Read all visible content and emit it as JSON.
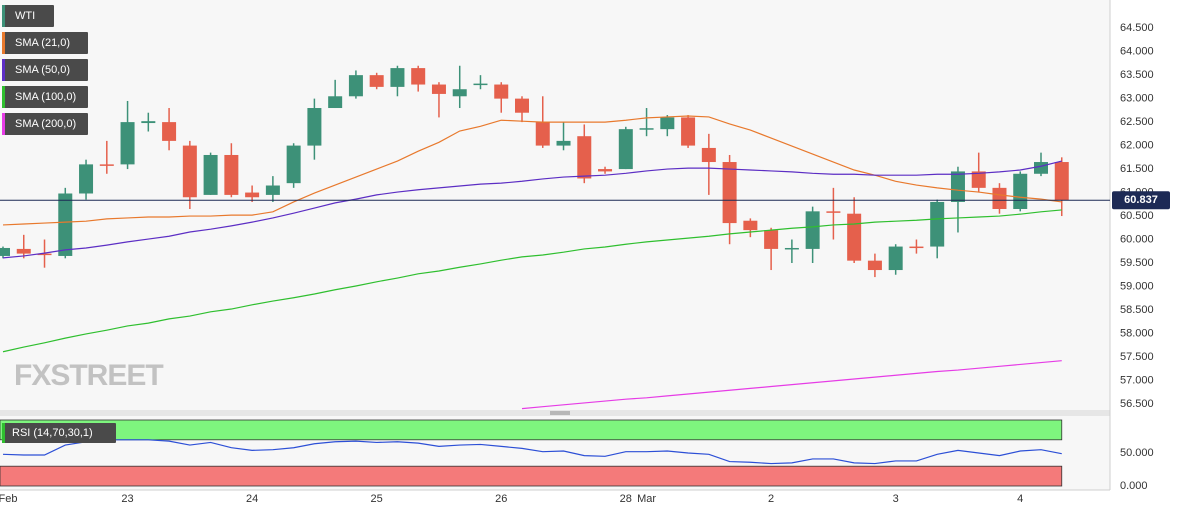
{
  "chart_data": [
    {
      "type": "candlestick",
      "categories": [
        "Feb",
        null,
        null,
        null,
        null,
        null,
        "23",
        null,
        null,
        null,
        null,
        null,
        "24",
        null,
        null,
        null,
        null,
        null,
        "25",
        null,
        null,
        null,
        null,
        null,
        "26",
        null,
        null,
        null,
        null,
        null,
        "28",
        "Mar",
        null,
        null,
        null,
        null,
        null,
        "2",
        null,
        null,
        null,
        null,
        null,
        "3",
        null,
        null,
        null,
        null,
        null,
        "4",
        null,
        null
      ],
      "ylim": [
        56.37,
        65.1
      ],
      "yticks": [
        {
          "value": 56.5,
          "label": "56.500"
        },
        {
          "value": 57,
          "label": "57.000"
        },
        {
          "value": 57.5,
          "label": "57.500"
        },
        {
          "value": 58,
          "label": "58.000"
        },
        {
          "value": 58.5,
          "label": "58.500"
        },
        {
          "value": 59,
          "label": "59.000"
        },
        {
          "value": 59.5,
          "label": "59.500"
        },
        {
          "value": 60,
          "label": "60.000"
        },
        {
          "value": 60.5,
          "label": "60.500"
        },
        {
          "value": 61,
          "label": "61.000"
        },
        {
          "value": 61.5,
          "label": "61.500"
        },
        {
          "value": 62,
          "label": "62.000"
        },
        {
          "value": 62.5,
          "label": "62.500"
        },
        {
          "value": 63,
          "label": "63.000"
        },
        {
          "value": 63.5,
          "label": "63.500"
        },
        {
          "value": 64,
          "label": "64.000"
        },
        {
          "value": 64.5,
          "label": "64.500"
        }
      ],
      "grid": true,
      "watermark": "FXSTREET",
      "last_price": 60.837,
      "last_price_color": "#1d2a55",
      "series": [
        {
          "name": "WTI",
          "type": "candlestick",
          "up_color": "#3d9178",
          "down_color": "#e5604c",
          "open": [
            59.65,
            59.8,
            59.7,
            59.65,
            60.98,
            61.6,
            61.6,
            62.48,
            62.5,
            62.0,
            60.95,
            61.8,
            61.0,
            60.95,
            61.2,
            62.0,
            62.8,
            63.05,
            63.5,
            63.25,
            63.65,
            63.3,
            63.05,
            63.3,
            63.3,
            63.0,
            62.5,
            62.0,
            62.2,
            61.5,
            61.5,
            62.35,
            62.35,
            62.6,
            61.95,
            61.65,
            60.4,
            60.2,
            59.8,
            59.8,
            60.6,
            60.55,
            59.55,
            59.35,
            59.85,
            59.85,
            60.8,
            61.45,
            61.1,
            60.65,
            61.4,
            61.65
          ],
          "high": [
            59.85,
            60.1,
            60.0,
            61.1,
            61.7,
            62.1,
            62.95,
            62.7,
            62.8,
            62.1,
            61.85,
            62.05,
            61.15,
            61.35,
            62.05,
            63.0,
            63.4,
            63.6,
            63.55,
            63.7,
            63.7,
            63.35,
            63.7,
            63.5,
            63.35,
            63.05,
            63.05,
            62.5,
            62.45,
            61.55,
            62.4,
            62.8,
            62.65,
            62.65,
            62.25,
            61.8,
            60.45,
            60.25,
            60.0,
            60.7,
            61.1,
            60.9,
            59.7,
            59.9,
            60.0,
            60.85,
            61.55,
            61.85,
            61.2,
            61.45,
            61.85,
            61.75
          ],
          "low": [
            59.6,
            59.6,
            59.4,
            59.6,
            60.85,
            61.4,
            61.5,
            62.3,
            61.9,
            60.65,
            60.95,
            60.9,
            60.8,
            60.8,
            61.1,
            61.7,
            62.8,
            63.0,
            63.2,
            63.05,
            63.15,
            62.6,
            62.8,
            63.2,
            62.7,
            62.5,
            61.95,
            61.9,
            61.2,
            61.4,
            61.5,
            62.2,
            62.2,
            61.95,
            60.95,
            59.9,
            60.05,
            59.35,
            59.5,
            59.5,
            60.0,
            59.5,
            59.2,
            59.25,
            59.7,
            59.6,
            60.15,
            61.0,
            60.55,
            60.6,
            61.35,
            60.5
          ],
          "close": [
            59.82,
            59.7,
            59.68,
            60.98,
            61.6,
            61.58,
            62.5,
            62.52,
            62.1,
            60.9,
            61.8,
            60.95,
            60.9,
            61.15,
            62.0,
            62.8,
            63.05,
            63.5,
            63.25,
            63.65,
            63.3,
            63.1,
            63.2,
            63.32,
            63.0,
            62.7,
            62.0,
            62.1,
            61.3,
            61.45,
            62.35,
            62.37,
            62.6,
            62.0,
            61.65,
            60.35,
            60.2,
            59.8,
            59.82,
            60.6,
            60.58,
            59.55,
            59.35,
            59.85,
            59.83,
            60.8,
            61.45,
            61.1,
            60.65,
            61.4,
            61.65,
            60.837
          ]
        },
        {
          "name": "SMA (21,0)",
          "type": "line",
          "color": "#e8792d",
          "values": [
            60.31,
            60.33,
            60.35,
            60.37,
            60.39,
            60.44,
            60.46,
            60.48,
            60.48,
            60.5,
            60.5,
            60.52,
            60.52,
            60.59,
            60.8,
            60.99,
            61.16,
            61.33,
            61.5,
            61.67,
            61.88,
            62.07,
            62.31,
            62.41,
            62.54,
            62.52,
            62.5,
            62.5,
            62.5,
            62.5,
            62.54,
            62.59,
            62.61,
            62.63,
            62.61,
            62.46,
            62.33,
            62.16,
            61.99,
            61.82,
            61.65,
            61.48,
            61.37,
            61.24,
            61.16,
            61.1,
            61.05,
            61.01,
            60.95,
            60.9,
            60.86,
            60.8
          ]
        },
        {
          "name": "SMA (50,0)",
          "type": "line",
          "color": "#5c2ec4",
          "values": [
            59.61,
            59.65,
            59.71,
            59.78,
            59.82,
            59.88,
            59.95,
            60.01,
            60.07,
            60.16,
            60.22,
            60.29,
            60.37,
            60.46,
            60.56,
            60.67,
            60.78,
            60.86,
            60.95,
            61.01,
            61.06,
            61.1,
            61.14,
            61.18,
            61.2,
            61.24,
            61.29,
            61.33,
            61.35,
            61.37,
            61.41,
            61.46,
            61.5,
            61.52,
            61.52,
            61.5,
            61.48,
            61.46,
            61.44,
            61.41,
            61.39,
            61.39,
            61.37,
            61.37,
            61.37,
            61.39,
            61.39,
            61.41,
            61.44,
            61.48,
            61.56,
            61.67
          ]
        },
        {
          "name": "SMA (100,0)",
          "type": "line",
          "color": "#2fbf2f",
          "values": [
            57.61,
            57.71,
            57.8,
            57.9,
            57.99,
            58.07,
            58.16,
            58.22,
            58.31,
            58.37,
            58.46,
            58.52,
            58.61,
            58.69,
            58.76,
            58.84,
            58.93,
            59.01,
            59.1,
            59.18,
            59.27,
            59.33,
            59.41,
            59.48,
            59.56,
            59.63,
            59.67,
            59.73,
            59.8,
            59.84,
            59.9,
            59.95,
            59.99,
            60.03,
            60.07,
            60.12,
            60.16,
            60.2,
            60.24,
            60.27,
            60.31,
            60.33,
            60.37,
            60.39,
            60.41,
            60.44,
            60.46,
            60.48,
            60.5,
            60.54,
            60.59,
            60.63
          ]
        },
        {
          "name": "SMA (200,0)",
          "type": "line",
          "color": "#e63ce6",
          "values": [
            null,
            null,
            null,
            null,
            null,
            null,
            null,
            null,
            null,
            null,
            null,
            null,
            null,
            null,
            null,
            null,
            null,
            null,
            null,
            null,
            null,
            null,
            null,
            null,
            null,
            56.4,
            56.44,
            56.48,
            56.52,
            56.56,
            56.6,
            56.63,
            56.67,
            56.71,
            56.75,
            56.79,
            56.83,
            56.87,
            56.91,
            56.95,
            56.99,
            57.03,
            57.07,
            57.11,
            57.15,
            57.19,
            57.22,
            57.26,
            57.3,
            57.34,
            57.38,
            57.42
          ]
        }
      ]
    },
    {
      "type": "line",
      "ylim": [
        0,
        100
      ],
      "yticks": [
        {
          "value": 0,
          "label": "0.000"
        },
        {
          "value": 50,
          "label": "50.000"
        }
      ],
      "zones": [
        {
          "range": [
            70,
            100
          ],
          "color": "#7ef57e"
        },
        {
          "range": [
            0,
            30
          ],
          "color": "#f47a7a"
        }
      ],
      "series": [
        {
          "name": "RSI (14,70,30,1)",
          "color": "#2c4fd6",
          "values": [
            48,
            47,
            47,
            62,
            67,
            70,
            70,
            70,
            68,
            62,
            66,
            58,
            54,
            55,
            58,
            64,
            67,
            68,
            66,
            67,
            65,
            60,
            62,
            63,
            60,
            57,
            52,
            53,
            46,
            45,
            52,
            52,
            53,
            50,
            48,
            37,
            36,
            34,
            35,
            41,
            41,
            35,
            34,
            38,
            38,
            48,
            54,
            50,
            46,
            53,
            55,
            49
          ]
        }
      ]
    }
  ]
}
